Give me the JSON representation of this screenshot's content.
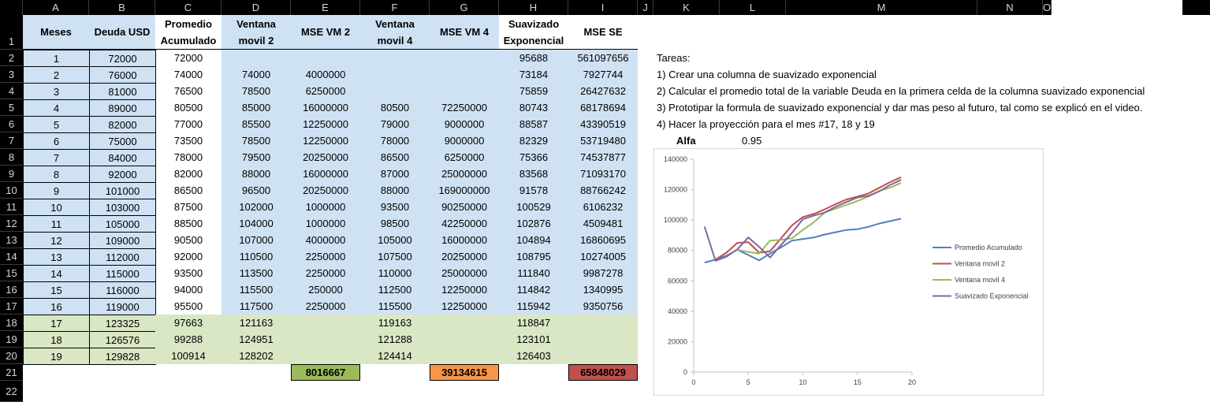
{
  "columns": [
    "A",
    "B",
    "C",
    "D",
    "E",
    "F",
    "G",
    "H",
    "I",
    "J",
    "K",
    "L",
    "M",
    "N",
    "O"
  ],
  "headers": {
    "A": "Meses",
    "B": "Deuda USD",
    "C": "Promedio Acumulado",
    "D": "Ventana movil 2",
    "E": "MSE VM 2",
    "F": "Ventana movil 4",
    "G": "MSE VM 4",
    "H": "Suavizado Exponencial",
    "I": "MSE SE"
  },
  "rows": [
    {
      "A": "1",
      "B": "72000",
      "C": "72000",
      "D": "",
      "E": "",
      "F": "",
      "G": "",
      "H": "95688",
      "I": "561097656"
    },
    {
      "A": "2",
      "B": "76000",
      "C": "74000",
      "D": "74000",
      "E": "4000000",
      "F": "",
      "G": "",
      "H": "73184",
      "I": "7927744"
    },
    {
      "A": "3",
      "B": "81000",
      "C": "76500",
      "D": "78500",
      "E": "6250000",
      "F": "",
      "G": "",
      "H": "75859",
      "I": "26427632"
    },
    {
      "A": "4",
      "B": "89000",
      "C": "80500",
      "D": "85000",
      "E": "16000000",
      "F": "80500",
      "G": "72250000",
      "H": "80743",
      "I": "68178694"
    },
    {
      "A": "5",
      "B": "82000",
      "C": "77000",
      "D": "85500",
      "E": "12250000",
      "F": "79000",
      "G": "9000000",
      "H": "88587",
      "I": "43390519"
    },
    {
      "A": "6",
      "B": "75000",
      "C": "73500",
      "D": "78500",
      "E": "12250000",
      "F": "78000",
      "G": "9000000",
      "H": "82329",
      "I": "53719480"
    },
    {
      "A": "7",
      "B": "84000",
      "C": "78000",
      "D": "79500",
      "E": "20250000",
      "F": "86500",
      "G": "6250000",
      "H": "75366",
      "I": "74537877"
    },
    {
      "A": "8",
      "B": "92000",
      "C": "82000",
      "D": "88000",
      "E": "16000000",
      "F": "87000",
      "G": "25000000",
      "H": "83568",
      "I": "71093170"
    },
    {
      "A": "9",
      "B": "101000",
      "C": "86500",
      "D": "96500",
      "E": "20250000",
      "F": "88000",
      "G": "169000000",
      "H": "91578",
      "I": "88766242"
    },
    {
      "A": "10",
      "B": "103000",
      "C": "87500",
      "D": "102000",
      "E": "1000000",
      "F": "93500",
      "G": "90250000",
      "H": "100529",
      "I": "6106232"
    },
    {
      "A": "11",
      "B": "105000",
      "C": "88500",
      "D": "104000",
      "E": "1000000",
      "F": "98500",
      "G": "42250000",
      "H": "102876",
      "I": "4509481"
    },
    {
      "A": "12",
      "B": "109000",
      "C": "90500",
      "D": "107000",
      "E": "4000000",
      "F": "105000",
      "G": "16000000",
      "H": "104894",
      "I": "16860695"
    },
    {
      "A": "13",
      "B": "112000",
      "C": "92000",
      "D": "110500",
      "E": "2250000",
      "F": "107500",
      "G": "20250000",
      "H": "108795",
      "I": "10274005"
    },
    {
      "A": "14",
      "B": "115000",
      "C": "93500",
      "D": "113500",
      "E": "2250000",
      "F": "110000",
      "G": "25000000",
      "H": "111840",
      "I": "9987278"
    },
    {
      "A": "15",
      "B": "116000",
      "C": "94000",
      "D": "115500",
      "E": "250000",
      "F": "112500",
      "G": "12250000",
      "H": "114842",
      "I": "1340995"
    },
    {
      "A": "16",
      "B": "119000",
      "C": "95500",
      "D": "117500",
      "E": "2250000",
      "F": "115500",
      "G": "12250000",
      "H": "115942",
      "I": "9350756"
    },
    {
      "A": "17",
      "B": "123325",
      "C": "97663",
      "D": "121163",
      "E": "",
      "F": "119163",
      "G": "",
      "H": "118847",
      "I": ""
    },
    {
      "A": "18",
      "B": "126576",
      "C": "99288",
      "D": "124951",
      "E": "",
      "F": "121288",
      "G": "",
      "H": "123101",
      "I": ""
    },
    {
      "A": "19",
      "B": "129828",
      "C": "100914",
      "D": "128202",
      "E": "",
      "F": "124414",
      "G": "",
      "H": "126403",
      "I": ""
    }
  ],
  "totals": {
    "E": "8016667",
    "G": "39134615",
    "I": "65848029"
  },
  "tasks": {
    "title": "Tareas:",
    "items": [
      "1) Crear una columna de suavizado exponencial",
      "2) Calcular el promedio total de la variable Deuda en la primera celda de la columna suavizado exponencial",
      "3) Prototipar la formula de suavizado exponencial y dar mas peso al futuro, tal como se explicó en el video.",
      "4) Hacer la  proyección para el mes #17, 18 y 19"
    ],
    "alfa_label": "Alfa",
    "alfa_value": "0.95"
  },
  "colors": {
    "blue_fill": "#cfe2f3",
    "green_fill": "#d9e7c4",
    "total_e": "#9bbb59",
    "total_g": "#f79646",
    "total_i": "#c0504d"
  },
  "chart_data": {
    "type": "line",
    "xlim": [
      0,
      20
    ],
    "ylim": [
      0,
      140000
    ],
    "xticks": [
      "0",
      "5",
      "10",
      "15",
      "20"
    ],
    "yticks": [
      "0",
      "20000",
      "40000",
      "60000",
      "80000",
      "100000",
      "120000",
      "140000"
    ],
    "grid": false,
    "legend": "right",
    "series": [
      {
        "name": "Promedio Acumulado",
        "color": "#4f81bd",
        "x": [
          1,
          2,
          3,
          4,
          5,
          6,
          7,
          8,
          9,
          10,
          11,
          12,
          13,
          14,
          15,
          16,
          17,
          18,
          19
        ],
        "values": [
          72000,
          74000,
          76500,
          80500,
          77000,
          73500,
          78000,
          82000,
          86500,
          87500,
          88500,
          90500,
          92000,
          93500,
          94000,
          95500,
          97663,
          99288,
          100914
        ]
      },
      {
        "name": "Ventana movil 2",
        "color": "#c0504d",
        "x": [
          2,
          3,
          4,
          5,
          6,
          7,
          8,
          9,
          10,
          11,
          12,
          13,
          14,
          15,
          16,
          17,
          18,
          19
        ],
        "values": [
          74000,
          78500,
          85000,
          85500,
          78500,
          79500,
          88000,
          96500,
          102000,
          104000,
          107000,
          110500,
          113500,
          115500,
          117500,
          121163,
          124951,
          128202
        ]
      },
      {
        "name": "Ventana movil 4",
        "color": "#9bbb59",
        "x": [
          4,
          5,
          6,
          7,
          8,
          9,
          10,
          11,
          12,
          13,
          14,
          15,
          16,
          17,
          18,
          19
        ],
        "values": [
          80500,
          79000,
          78000,
          86500,
          87000,
          88000,
          93500,
          98500,
          105000,
          107500,
          110000,
          112500,
          115500,
          119163,
          121288,
          124414
        ]
      },
      {
        "name": "Suavizado Exponencial",
        "color": "#8064a2",
        "x": [
          1,
          2,
          3,
          4,
          5,
          6,
          7,
          8,
          9,
          10,
          11,
          12,
          13,
          14,
          15,
          16,
          17,
          18,
          19
        ],
        "values": [
          95688,
          73184,
          75859,
          80743,
          88587,
          82329,
          75366,
          83568,
          91578,
          100529,
          102876,
          104894,
          108795,
          111840,
          114842,
          115942,
          118847,
          123101,
          126403
        ]
      }
    ]
  }
}
